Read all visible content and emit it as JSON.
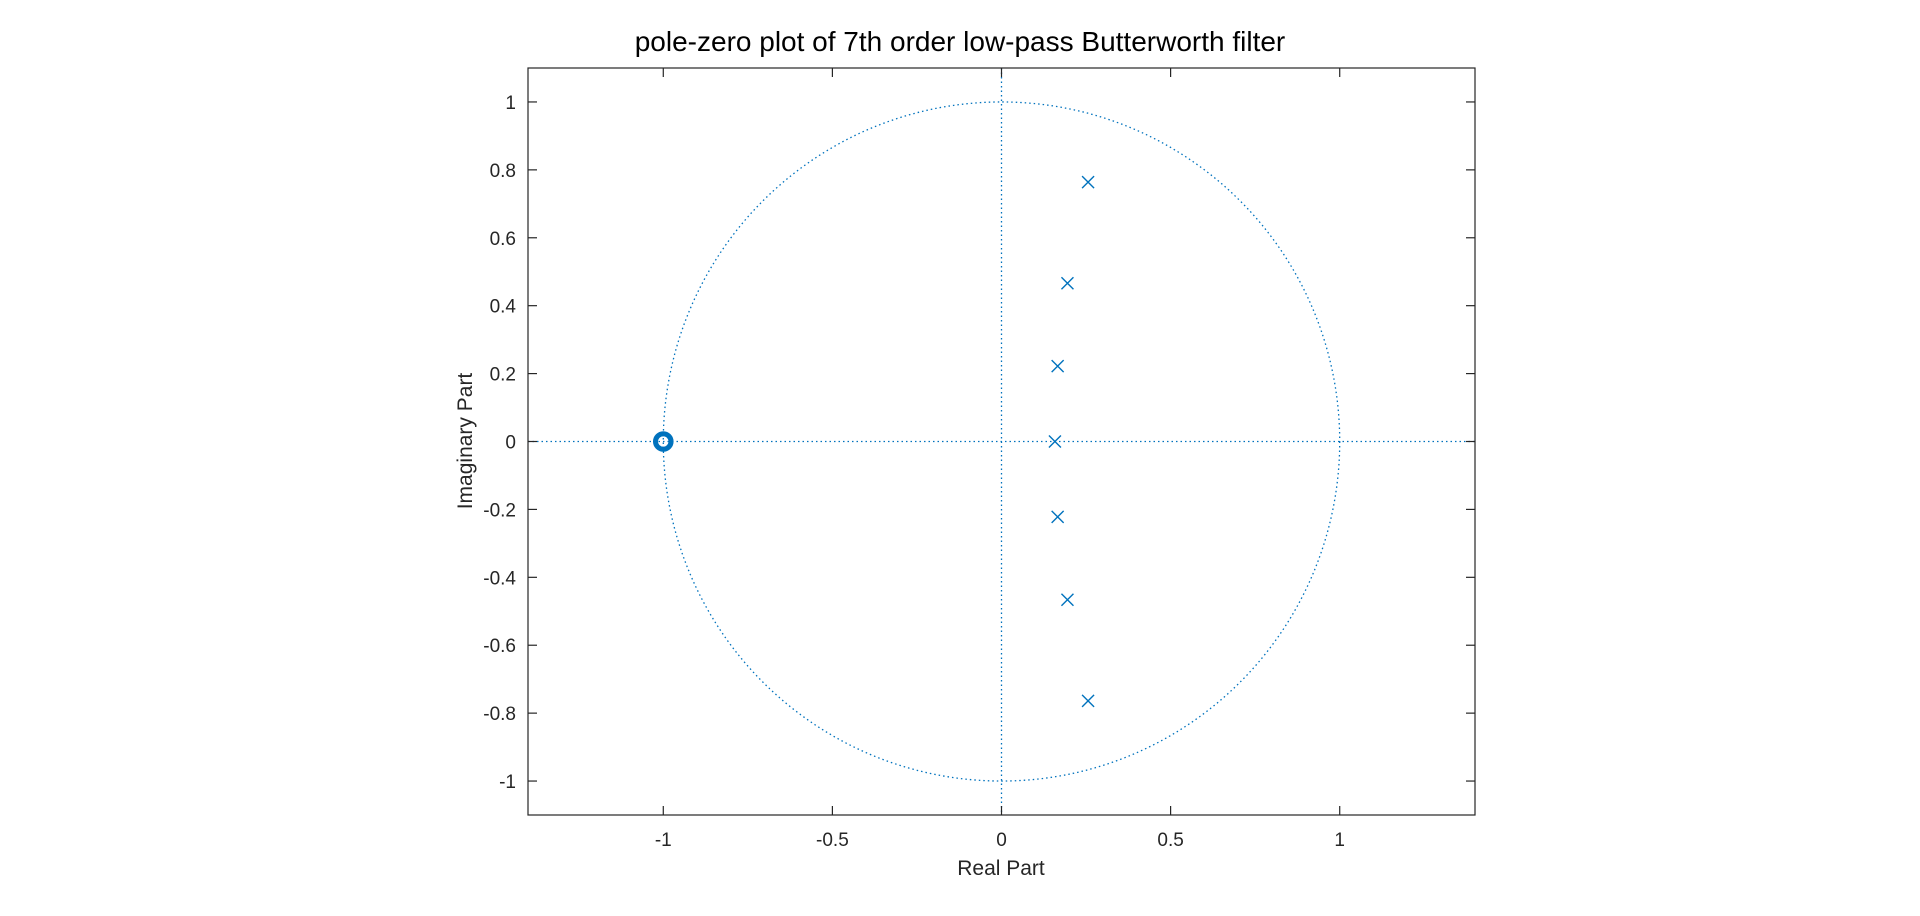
{
  "chart_data": {
    "type": "scatter",
    "title": "pole-zero plot of 7th order low-pass Butterworth filter",
    "xlabel": "Real Part",
    "ylabel": "Imaginary Part",
    "xlim": [
      -1.4,
      1.4
    ],
    "ylim": [
      -1.1,
      1.1
    ],
    "xticks": [
      -1,
      -0.5,
      0,
      0.5,
      1
    ],
    "yticks": [
      -1,
      -0.8,
      -0.6,
      -0.4,
      -0.2,
      0,
      0.2,
      0.4,
      0.6,
      0.8,
      1
    ],
    "grid": false,
    "reference_lines": {
      "unit_circle": true,
      "real_axis": true,
      "imaginary_axis": true
    },
    "series": [
      {
        "marker": "o",
        "points": [
          {
            "x": -1,
            "y": 0
          },
          {
            "x": -1,
            "y": 0
          },
          {
            "x": -1,
            "y": 0
          },
          {
            "x": -1,
            "y": 0
          },
          {
            "x": -1,
            "y": 0
          },
          {
            "x": -1,
            "y": 0
          },
          {
            "x": -1,
            "y": 0
          }
        ]
      },
      {
        "marker": "x",
        "points": [
          {
            "x": 0.256,
            "y": 0.764
          },
          {
            "x": 0.195,
            "y": 0.466
          },
          {
            "x": 0.166,
            "y": 0.222
          },
          {
            "x": 0.158,
            "y": 0.0
          },
          {
            "x": 0.166,
            "y": -0.222
          },
          {
            "x": 0.195,
            "y": -0.466
          },
          {
            "x": 0.256,
            "y": -0.764
          }
        ]
      }
    ],
    "colors": {
      "marker": "#0072BD",
      "axes": "#262626",
      "reference": "#0072BD"
    }
  }
}
